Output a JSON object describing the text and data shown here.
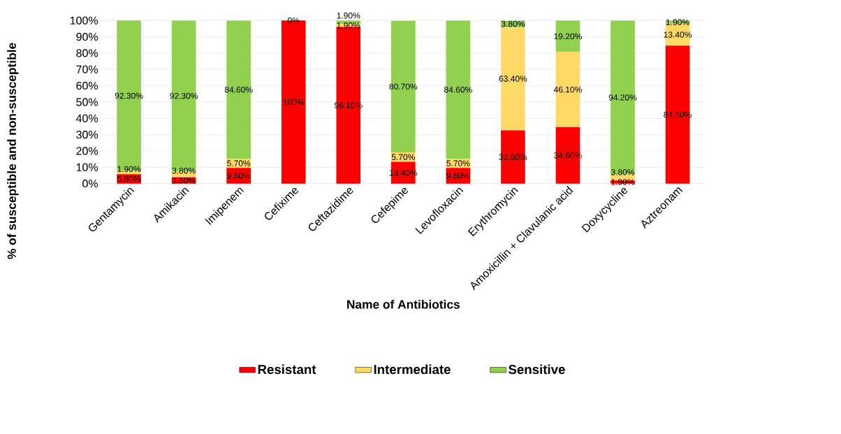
{
  "chart_data": {
    "type": "bar",
    "stacked": true,
    "xlabel": "Name of Antibiotics",
    "ylabel": "% of susceptible and non-susceptible",
    "categories": [
      "Gentamycin",
      "Amikacin",
      "Imipenem",
      "Cefixime",
      "Ceftazidime",
      "Cefepime",
      "Levofloxacin",
      "Erythromycin",
      "Amoxicillin + Clavulanic acid",
      "Doxycycline",
      "Aztreonam"
    ],
    "series": [
      {
        "name": "Resistant",
        "color": "#ff0000",
        "values": [
          5.8,
          3.8,
          9.6,
          100,
          96.1,
          13.4,
          9.6,
          32.6,
          34.6,
          1.9,
          84.6
        ],
        "value_labels": [
          "5.80%",
          "3.80%",
          "9.60%",
          "100%",
          "96.10%",
          "13.40%",
          "9.60%",
          "32.60%",
          "34.60%",
          "1.90%",
          "84.60%"
        ]
      },
      {
        "name": "Intermediate",
        "color": "#ffd966",
        "values": [
          1.9,
          3.8,
          5.7,
          0,
          1.9,
          5.7,
          5.7,
          63.4,
          46.1,
          3.8,
          13.4
        ],
        "value_labels": [
          "1.90%",
          "3.80%",
          "5.70%",
          null,
          "1.90%",
          "5.70%",
          "5.70%",
          "63.40%",
          "46.10%",
          "3.80%",
          "13.40%"
        ]
      },
      {
        "name": "Sensitive",
        "color": "#92d050",
        "values": [
          92.3,
          92.3,
          84.6,
          0,
          1.9,
          80.7,
          84.6,
          3.8,
          19.2,
          94.2,
          1.9
        ],
        "value_labels": [
          "92.30%",
          "92.30%",
          "84.60%",
          "0%",
          "1.90%",
          "80.70%",
          "84.60%",
          "3.80%",
          "19.20%",
          "94.20%",
          "1.90%"
        ]
      }
    ],
    "ylim": [
      0,
      100
    ],
    "yticks": [
      {
        "value": 0,
        "label": "0%"
      },
      {
        "value": 10,
        "label": "10%"
      },
      {
        "value": 20,
        "label": "20%"
      },
      {
        "value": 30,
        "label": "30%"
      },
      {
        "value": 40,
        "label": "40%"
      },
      {
        "value": 50,
        "label": "50%"
      },
      {
        "value": 60,
        "label": "60%"
      },
      {
        "value": 70,
        "label": "70%"
      },
      {
        "value": 80,
        "label": "80%"
      },
      {
        "value": 90,
        "label": "90%"
      },
      {
        "value": 100,
        "label": "100%"
      }
    ],
    "grid": "y",
    "legend": "bottom"
  }
}
